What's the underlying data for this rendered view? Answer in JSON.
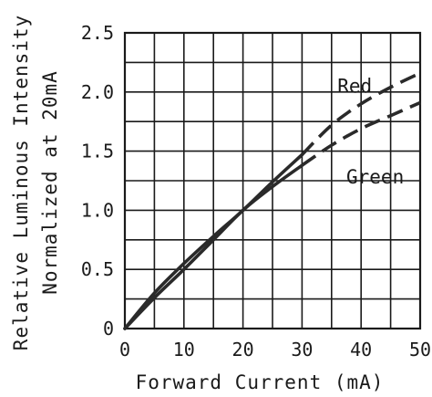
{
  "chart_data": {
    "type": "line",
    "xlabel": "Forward Current (mA)",
    "ylabel_lines": [
      "Relative Luminous Intensity",
      "Normalized at 20mA"
    ],
    "xlim": [
      0,
      50
    ],
    "ylim": [
      0,
      2.5
    ],
    "x_ticks": [
      0,
      10,
      20,
      30,
      40,
      50
    ],
    "x_tick_labels": [
      "0",
      "10",
      "20",
      "30",
      "40",
      "50"
    ],
    "y_ticks": [
      0,
      0.5,
      1.0,
      1.5,
      2.0,
      2.5
    ],
    "y_tick_labels": [
      "0",
      "0.5",
      "1.0",
      "1.5",
      "2.0",
      "2.5"
    ],
    "x_grid_step": 5,
    "y_grid_step": 0.25,
    "grid": true,
    "series": [
      {
        "name": "Red",
        "solid": [
          [
            0,
            0
          ],
          [
            5,
            0.3
          ],
          [
            10,
            0.55
          ],
          [
            15,
            0.78
          ],
          [
            20,
            1.0
          ],
          [
            25,
            1.24
          ],
          [
            30,
            1.47
          ]
        ],
        "dashed": [
          [
            30,
            1.47
          ],
          [
            35,
            1.72
          ],
          [
            40,
            1.9
          ],
          [
            45,
            2.04
          ],
          [
            50,
            2.16
          ]
        ]
      },
      {
        "name": "Green",
        "solid": [
          [
            0,
            0
          ],
          [
            5,
            0.26
          ],
          [
            10,
            0.5
          ],
          [
            15,
            0.75
          ],
          [
            20,
            1.0
          ],
          [
            25,
            1.2
          ],
          [
            30,
            1.38
          ]
        ],
        "dashed": [
          [
            30,
            1.38
          ],
          [
            35,
            1.55
          ],
          [
            40,
            1.69
          ],
          [
            45,
            1.8
          ],
          [
            50,
            1.91
          ]
        ]
      }
    ],
    "annotations": [
      {
        "text": "Red",
        "x": 36,
        "y": 2.05
      },
      {
        "text": "Green",
        "x": 37.5,
        "y": 1.28
      }
    ]
  }
}
